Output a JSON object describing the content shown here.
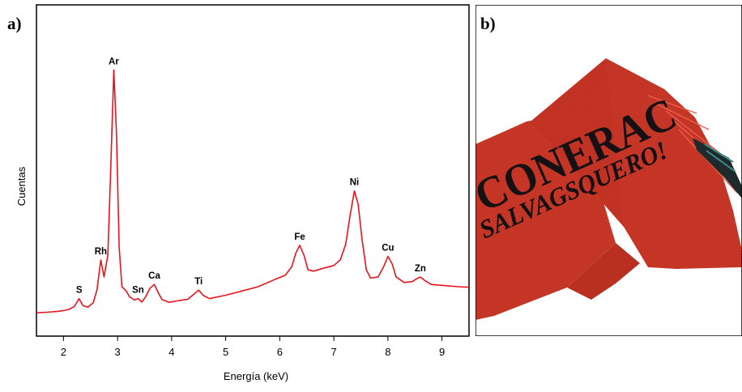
{
  "panels": {
    "a_label": "a)",
    "b_label": "b)"
  },
  "chart_data": {
    "type": "line",
    "xlabel": "Energía (keV)",
    "ylabel": "Cuentas",
    "xlim": [
      1.5,
      9.5
    ],
    "ylim": [
      0,
      100
    ],
    "xticks": [
      2,
      3,
      4,
      5,
      6,
      7,
      8,
      9
    ],
    "grid": false,
    "line_color": "#e8141c",
    "series": [
      {
        "values": [
          [
            1.5,
            6.8
          ],
          [
            1.7,
            7.0
          ],
          [
            1.9,
            7.3
          ],
          [
            2.0,
            7.6
          ],
          [
            2.1,
            8.0
          ],
          [
            2.2,
            9.0
          ],
          [
            2.29,
            11.8
          ],
          [
            2.36,
            9.3
          ],
          [
            2.45,
            8.8
          ],
          [
            2.55,
            10.3
          ],
          [
            2.62,
            15
          ],
          [
            2.69,
            25.4
          ],
          [
            2.75,
            19.5
          ],
          [
            2.82,
            27
          ],
          [
            2.87,
            55
          ],
          [
            2.93,
            92.5
          ],
          [
            2.98,
            70
          ],
          [
            3.03,
            30
          ],
          [
            3.08,
            16
          ],
          [
            3.16,
            14.5
          ],
          [
            3.22,
            12.5
          ],
          [
            3.31,
            11.3
          ],
          [
            3.38,
            11.8
          ],
          [
            3.45,
            10.6
          ],
          [
            3.52,
            12.5
          ],
          [
            3.6,
            15.5
          ],
          [
            3.68,
            16.8
          ],
          [
            3.75,
            14
          ],
          [
            3.82,
            11.5
          ],
          [
            3.95,
            10.5
          ],
          [
            4.1,
            11
          ],
          [
            4.3,
            11.6
          ],
          [
            4.42,
            13.5
          ],
          [
            4.5,
            14.8
          ],
          [
            4.58,
            13
          ],
          [
            4.7,
            11.8
          ],
          [
            5.0,
            13
          ],
          [
            5.3,
            14.5
          ],
          [
            5.6,
            16
          ],
          [
            5.9,
            18.5
          ],
          [
            6.1,
            20
          ],
          [
            6.22,
            23
          ],
          [
            6.3,
            28
          ],
          [
            6.37,
            30.6
          ],
          [
            6.45,
            27
          ],
          [
            6.52,
            22
          ],
          [
            6.62,
            21.5
          ],
          [
            6.8,
            22.5
          ],
          [
            7.0,
            23.5
          ],
          [
            7.12,
            25.5
          ],
          [
            7.22,
            31
          ],
          [
            7.3,
            41
          ],
          [
            7.38,
            49.8
          ],
          [
            7.45,
            45
          ],
          [
            7.52,
            33
          ],
          [
            7.6,
            22
          ],
          [
            7.68,
            19
          ],
          [
            7.82,
            19.5
          ],
          [
            7.92,
            23
          ],
          [
            8.0,
            26.7
          ],
          [
            8.08,
            24
          ],
          [
            8.15,
            19.5
          ],
          [
            8.3,
            17.5
          ],
          [
            8.45,
            17.8
          ],
          [
            8.53,
            18.8
          ],
          [
            8.6,
            19.4
          ],
          [
            8.68,
            18.2
          ],
          [
            8.8,
            16.8
          ],
          [
            9.0,
            16.5
          ],
          [
            9.3,
            16.0
          ],
          [
            9.5,
            15.8
          ]
        ]
      }
    ],
    "annotations": [
      {
        "text": "S",
        "x": 2.29,
        "y": 11.8
      },
      {
        "text": "Rh",
        "x": 2.69,
        "y": 25.4
      },
      {
        "text": "Ar",
        "x": 2.93,
        "y": 92.5
      },
      {
        "text": "Sn",
        "x": 3.38,
        "y": 11.8
      },
      {
        "text": "Ca",
        "x": 3.68,
        "y": 16.8
      },
      {
        "text": "Ti",
        "x": 4.5,
        "y": 14.8
      },
      {
        "text": "Fe",
        "x": 6.37,
        "y": 30.6
      },
      {
        "text": "Ni",
        "x": 7.38,
        "y": 49.8
      },
      {
        "text": "Cu",
        "x": 8.0,
        "y": 26.7
      },
      {
        "text": "Zn",
        "x": 8.6,
        "y": 19.4
      }
    ]
  },
  "photo": {
    "text_line1": "CONERAC",
    "text_line2": "SALVAGSQUERO!",
    "colors": {
      "fabric": "#d23b2a",
      "fabric_dark": "#a8281c",
      "ink": "#141014"
    }
  }
}
